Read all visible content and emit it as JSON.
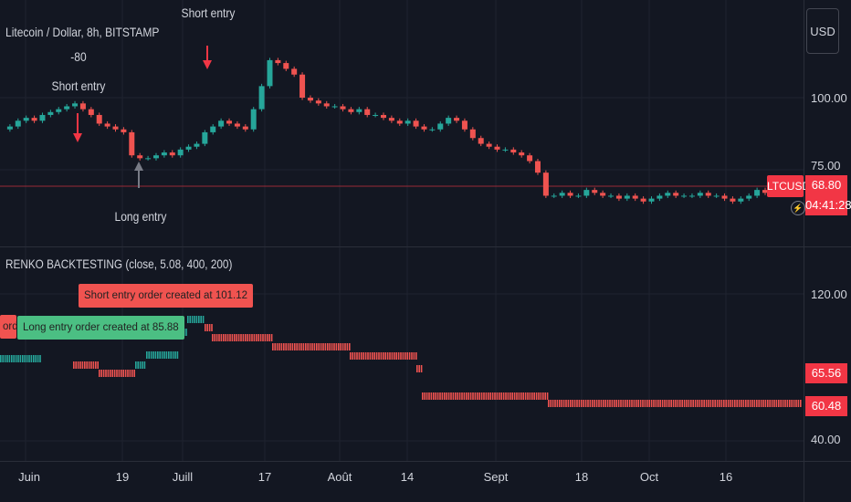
{
  "symbol_title": "Litecoin / Dollar, 8h, BITSTAMP",
  "currency_button": "USD",
  "annotations": {
    "top_value": "-80",
    "short_entry_left": "Short entry",
    "short_entry_top": "Short entry",
    "long_entry": "Long entry"
  },
  "price_axis": {
    "labels": [
      "100.00",
      "75.00"
    ],
    "ticker_badge": "LTCUSD",
    "last_price": "68.80",
    "countdown": "04:41:28",
    "timer_icon": "bolt-icon"
  },
  "indicator": {
    "title": "RENKO BACKTESTING (close, 5.08, 400, 200)",
    "short_order_label": "Short entry order created at 101.12",
    "long_order_label": "Long entry order created at 85.88",
    "partial_short_label": "order c",
    "axis_labels": [
      "120.00",
      "40.00"
    ],
    "value_high": "65.56",
    "value_low": "60.48"
  },
  "time_axis": [
    "Juin",
    "19",
    "Juill",
    "17",
    "Août",
    "14",
    "Sept",
    "18",
    "Oct",
    "16"
  ],
  "colors": {
    "background": "#131722",
    "bullish": "#26a69a",
    "bearish": "#ef5350",
    "badge_red": "#f23645",
    "tag_green": "#4bbf83"
  },
  "chart_data": {
    "type": "candlestick",
    "price_levels": {
      "upper": 100.0,
      "lower": 75.0
    },
    "last_price": 68.8,
    "series_close": [
      89,
      90,
      92,
      93,
      92,
      94,
      95,
      96,
      97,
      98,
      96,
      94,
      91,
      90,
      89,
      88,
      80,
      79,
      79,
      80,
      81,
      80,
      82,
      83,
      84,
      88,
      90,
      92,
      91,
      90,
      89,
      96,
      104,
      113,
      112,
      110,
      108,
      100,
      99,
      98,
      97,
      97,
      96,
      95,
      96,
      94,
      94,
      93,
      92,
      91,
      92,
      90,
      89,
      89,
      91,
      93,
      92,
      89,
      86,
      84,
      83,
      82,
      82,
      81,
      80,
      78,
      74,
      66,
      66,
      67,
      66,
      66,
      68,
      67,
      66,
      66,
      65,
      66,
      65,
      64,
      65,
      66,
      67,
      66,
      66,
      66,
      67,
      66,
      66,
      65,
      64,
      65,
      66,
      68,
      67
    ]
  }
}
